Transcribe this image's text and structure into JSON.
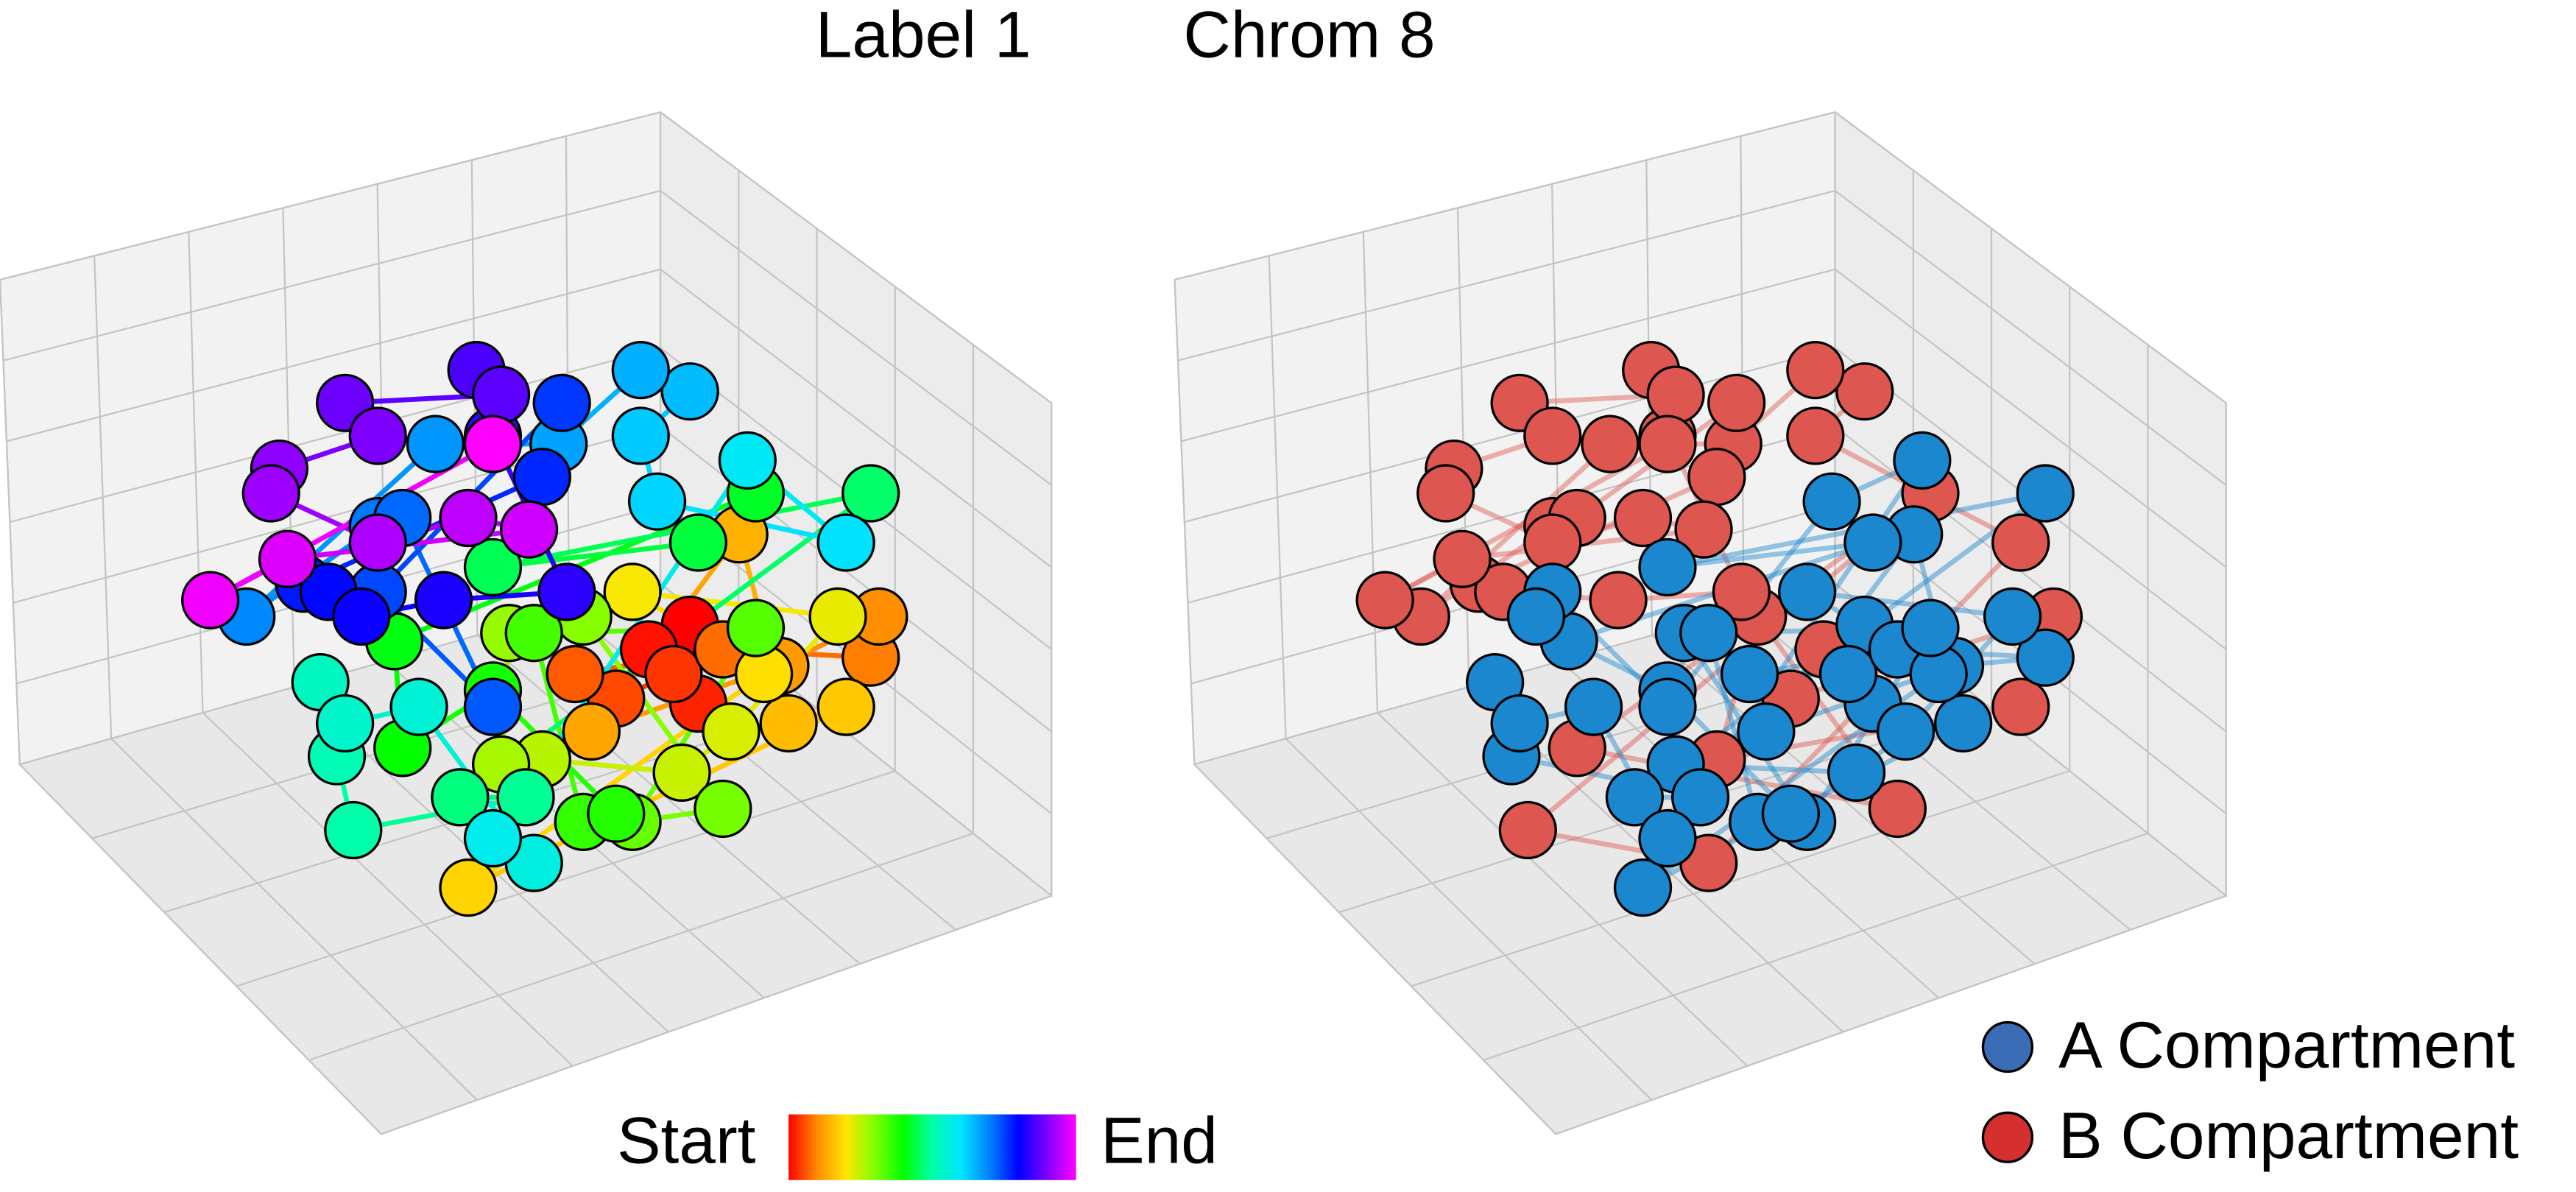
{
  "chart_data": [
    {
      "type": "scatter3d",
      "title": "Label 1",
      "colormap": [
        "#ff0000",
        "#ff8c00",
        "#ffe600",
        "#7fff00",
        "#00ff00",
        "#00ffaa",
        "#00e5ff",
        "#0080ff",
        "#0000ff",
        "#8000ff",
        "#ff00ff"
      ],
      "colorbar": {
        "start": "Start",
        "end": "End"
      },
      "x": [
        420,
        395,
        425,
        410,
        375,
        350,
        440,
        530,
        535,
        475,
        360,
        450,
        480,
        515,
        285,
        465,
        385,
        510,
        445,
        415,
        330,
        305,
        310,
        355,
        440,
        385,
        460,
        325,
        355,
        375,
        300,
        245,
        240,
        460,
        425,
        300,
        530,
        280,
        320,
        215,
        205,
        195,
        210,
        255,
        325,
        300,
        455,
        515,
        400,
        390,
        420,
        390,
        340,
        265,
        150,
        230,
        245,
        300,
        230,
        342,
        330,
        185,
        200,
        220,
        270,
        345,
        300,
        290,
        305,
        210,
        230,
        170,
        165,
        230,
        285,
        322,
        175,
        128,
        300
      ],
      "y": [
        380,
        395,
        428,
        410,
        425,
        410,
        395,
        400,
        375,
        405,
        445,
        325,
        440,
        430,
        540,
        410,
        360,
        375,
        445,
        470,
        462,
        465,
        385,
        375,
        492,
        500,
        382,
        385,
        500,
        495,
        420,
        455,
        390,
        300,
        330,
        345,
        300,
        485,
        485,
        505,
        460,
        415,
        440,
        430,
        525,
        510,
        280,
        330,
        305,
        265,
        238,
        225,
        270,
        270,
        375,
        320,
        315,
        430,
        360,
        245,
        290,
        355,
        360,
        375,
        365,
        360,
        265,
        225,
        240,
        245,
        265,
        285,
        300,
        330,
        315,
        322,
        340,
        365,
        270
      ]
    },
    {
      "type": "scatter3d",
      "title": "Chrom 8",
      "series": [
        {
          "name": "A Compartment",
          "color": "#1b87cf",
          "legend_color": "#3a6db5",
          "x": [
            420,
            425,
            410,
            350,
            440,
            530,
            475,
            360,
            450,
            480,
            285,
            465,
            385,
            510,
            445,
            415,
            305,
            310,
            385,
            460,
            325,
            355,
            375,
            300,
            240,
            425,
            300,
            530,
            280,
            320,
            205,
            195,
            210,
            255,
            300,
            455,
            400,
            300,
            230,
            220
          ],
          "y": [
            380,
            428,
            410,
            410,
            395,
            400,
            405,
            445,
            325,
            440,
            540,
            410,
            360,
            375,
            445,
            470,
            465,
            385,
            500,
            382,
            385,
            500,
            495,
            420,
            390,
            330,
            345,
            300,
            485,
            485,
            460,
            415,
            440,
            430,
            510,
            280,
            305,
            430,
            360,
            375
          ]
        },
        {
          "name": "B Compartment",
          "color": "#dd5650",
          "legend_color": "#d62f2f",
          "x": [
            395,
            375,
            535,
            515,
            330,
            355,
            440,
            245,
            460,
            215,
            325,
            515,
            390,
            420,
            390,
            340,
            265,
            150,
            230,
            245,
            342,
            330,
            185,
            200,
            270,
            345,
            300,
            290,
            305,
            210,
            230,
            170,
            165,
            230,
            285,
            322,
            175,
            128,
            300
          ],
          "y": [
            395,
            425,
            375,
            430,
            462,
            375,
            492,
            455,
            300,
            505,
            525,
            330,
            265,
            238,
            225,
            270,
            270,
            375,
            320,
            315,
            245,
            290,
            355,
            360,
            365,
            360,
            265,
            225,
            240,
            245,
            265,
            285,
            300,
            330,
            315,
            322,
            340,
            365,
            270
          ]
        }
      ]
    }
  ]
}
